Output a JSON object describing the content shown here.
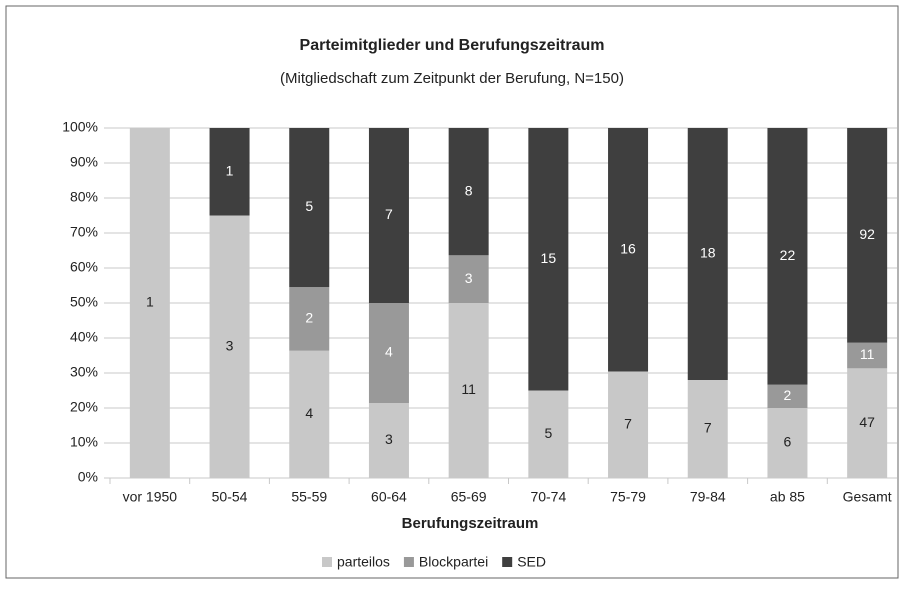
{
  "chart_data": {
    "type": "bar",
    "stacking": "percent",
    "title": "Parteimitglieder und Berufungszeitraum",
    "subtitle": "(Mitgliedschaft zum Zeitpunkt der Berufung, N=150)",
    "x_label": "Berufungszeitraum",
    "categories": [
      "vor 1950",
      "50-54",
      "55-59",
      "60-64",
      "65-69",
      "70-74",
      "75-79",
      "79-84",
      "ab 85",
      "Gesamt"
    ],
    "series": [
      {
        "name": "parteilos",
        "color": "#c8c8c8",
        "label_color": "#222222",
        "values": [
          1,
          3,
          4,
          3,
          11,
          5,
          7,
          7,
          6,
          47
        ]
      },
      {
        "name": "Blockpartei",
        "color": "#999999",
        "label_color": "#ffffff",
        "values": [
          null,
          null,
          2,
          4,
          3,
          null,
          null,
          null,
          2,
          11
        ]
      },
      {
        "name": "SED",
        "color": "#3f3f3f",
        "label_color": "#ffffff",
        "values": [
          null,
          1,
          5,
          7,
          8,
          15,
          16,
          18,
          22,
          92
        ]
      }
    ],
    "ylim": [
      0,
      100
    ],
    "yticks": [
      {
        "value": 0,
        "label": "0%"
      },
      {
        "value": 10,
        "label": "10%"
      },
      {
        "value": 20,
        "label": "20%"
      },
      {
        "value": 30,
        "label": "30%"
      },
      {
        "value": 40,
        "label": "40%"
      },
      {
        "value": 50,
        "label": "50%"
      },
      {
        "value": 60,
        "label": "60%"
      },
      {
        "value": 70,
        "label": "70%"
      },
      {
        "value": 80,
        "label": "80%"
      },
      {
        "value": 90,
        "label": "90%"
      },
      {
        "value": 100,
        "label": "100%"
      }
    ],
    "grid": true,
    "legend": "bottom"
  }
}
